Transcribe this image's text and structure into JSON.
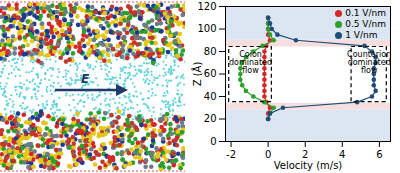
{
  "chart_data": {
    "type": "line",
    "orientation": "horizontal",
    "xlabel": "Velocity (m/s)",
    "ylabel": "Z (Å)",
    "xlim": [
      -2.3,
      6.6
    ],
    "xticks": [
      -2,
      0,
      2,
      4,
      6
    ],
    "ylim": [
      0,
      120
    ],
    "yticks": [
      0,
      20,
      40,
      60,
      80,
      100,
      120
    ],
    "legend": "top-right",
    "marker": "circle",
    "y": [
      20,
      25,
      30,
      35,
      40,
      45,
      50,
      55,
      60,
      65,
      70,
      75,
      80,
      85,
      90,
      95,
      100,
      105,
      110
    ],
    "series": [
      {
        "name": "0.1 V/nm",
        "color": "#d62728",
        "values": [
          0,
          0,
          0.1,
          -0.1,
          -0.2,
          -0.2,
          -0.2,
          -0.2,
          -0.2,
          -0.2,
          -0.2,
          -0.2,
          -0.2,
          -0.1,
          0.1,
          0,
          0,
          0,
          0
        ]
      },
      {
        "name": "0.5 V/nm",
        "color": "#2ca02c",
        "values": [
          0,
          0.1,
          0.3,
          -0.2,
          -0.8,
          -1.2,
          -1.4,
          -1.5,
          -1.5,
          -1.5,
          -1.4,
          -1.2,
          -0.8,
          -0.3,
          0.3,
          0.1,
          0,
          0,
          0
        ]
      },
      {
        "name": "1 V/nm",
        "color": "#1f4e79",
        "values": [
          0,
          0.1,
          0.8,
          4.8,
          5.6,
          5.8,
          5.7,
          5.7,
          5.7,
          5.7,
          5.8,
          5.8,
          5.6,
          5.2,
          1.5,
          0.5,
          0.2,
          0.1,
          0
        ]
      }
    ],
    "bands": [
      {
        "y1": 0,
        "y2": 28,
        "color": "#dce6f2"
      },
      {
        "y1": 28,
        "y2": 34,
        "color": "#f7dede"
      },
      {
        "y1": 84,
        "y2": 90,
        "color": "#f7dede"
      },
      {
        "y1": 90,
        "y2": 120,
        "color": "#dce6f2"
      }
    ],
    "boxes": [
      {
        "x1": -2.1,
        "x2": 0.2,
        "y1": 35,
        "y2": 84,
        "text": "Coion\ndominated\nflow"
      },
      {
        "x1": 4.5,
        "x2": 6.4,
        "y1": 35,
        "y2": 84,
        "text": "Counterion\ndominated\nflow"
      }
    ]
  },
  "image": {
    "field_label": "E"
  }
}
